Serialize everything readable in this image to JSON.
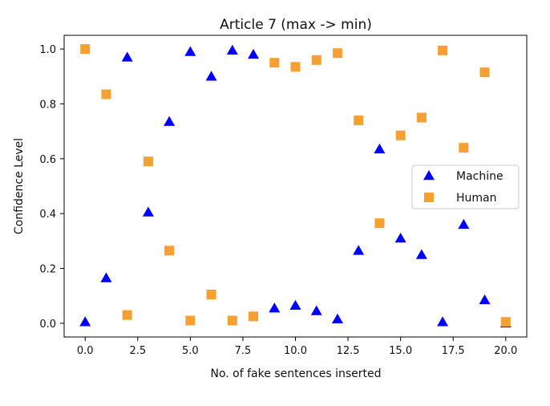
{
  "chart_data": {
    "type": "scatter",
    "title": "Article 7 (max -> min)",
    "xlabel": "No. of fake sentences inserted",
    "ylabel": "Confidence Level",
    "xlim": [
      -1,
      21
    ],
    "ylim": [
      -0.05,
      1.05
    ],
    "xticks": [
      "0.0",
      "2.5",
      "5.0",
      "7.5",
      "10.0",
      "12.5",
      "15.0",
      "17.5",
      "20.0"
    ],
    "yticks": [
      "0.0",
      "0.2",
      "0.4",
      "0.6",
      "0.8",
      "1.0"
    ],
    "grid": false,
    "legend_position": "center-right",
    "series": [
      {
        "name": "Machine",
        "marker": "triangle",
        "color": "#0000ff",
        "x": [
          0,
          1,
          2,
          3,
          4,
          5,
          6,
          7,
          8,
          9,
          10,
          11,
          12,
          13,
          14,
          15,
          16,
          17,
          18,
          19,
          20
        ],
        "y": [
          0.005,
          0.165,
          0.97,
          0.405,
          0.735,
          0.99,
          0.9,
          0.995,
          0.98,
          0.055,
          0.065,
          0.045,
          0.015,
          0.265,
          0.635,
          0.31,
          0.25,
          0.005,
          0.36,
          0.085,
          0.0
        ]
      },
      {
        "name": "Human",
        "marker": "square",
        "color": "#f5a030",
        "x": [
          0,
          1,
          2,
          3,
          4,
          5,
          6,
          7,
          8,
          9,
          10,
          11,
          12,
          13,
          14,
          15,
          16,
          17,
          18,
          19,
          20
        ],
        "y": [
          1.0,
          0.835,
          0.03,
          0.59,
          0.265,
          0.01,
          0.105,
          0.01,
          0.025,
          0.95,
          0.935,
          0.96,
          0.985,
          0.74,
          0.365,
          0.685,
          0.75,
          0.995,
          0.64,
          0.915,
          0.005
        ]
      }
    ]
  }
}
